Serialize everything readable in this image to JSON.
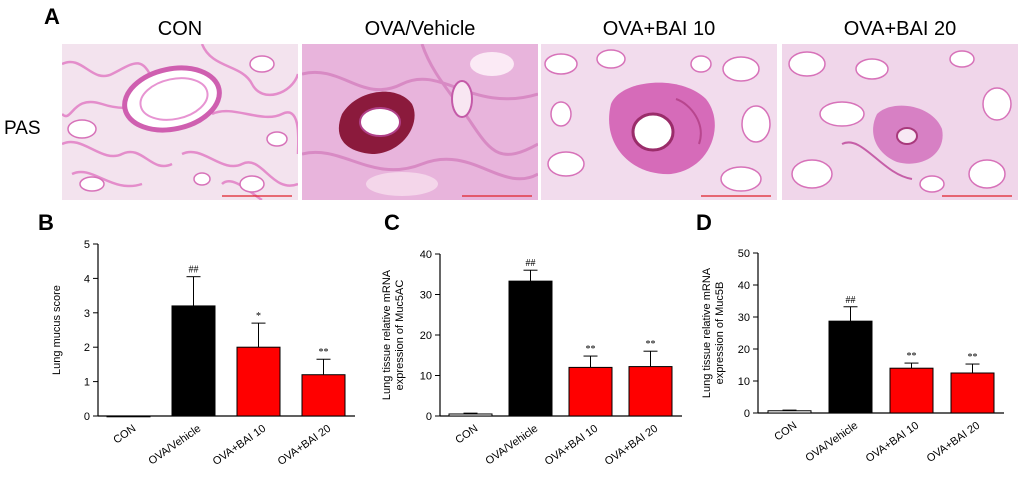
{
  "panel_a": {
    "letter": "A",
    "stain_label": "PAS",
    "groups": [
      "CON",
      "OVA/Vehicle",
      "OVA+BAI 10",
      "OVA+BAI 20"
    ]
  },
  "colors": {
    "con": "#ffffff",
    "vehicle": "#000000",
    "treated": "#ff0000",
    "tissue": "#e98fd0",
    "tissue_dark": "#c45aa8",
    "mucus": "#8b1a3c",
    "scale_bar": "#e0202a"
  },
  "chart_data": [
    {
      "type": "bar",
      "letter": "B",
      "categories": [
        "CON",
        "OVA/Vehicle",
        "OVA+BAI 10",
        "OVA+BAI 20"
      ],
      "values": [
        0,
        3.2,
        2.0,
        1.2
      ],
      "errors": [
        0,
        0.85,
        0.7,
        0.45
      ],
      "significance": [
        "",
        "##",
        "*",
        "**"
      ],
      "ylabel": "Lung mucus score",
      "ylim": [
        0,
        5
      ],
      "yticks": [
        0,
        1,
        2,
        3,
        4,
        5
      ],
      "bar_colors": [
        "#ffffff",
        "#000000",
        "#ff0000",
        "#ff0000"
      ]
    },
    {
      "type": "bar",
      "letter": "C",
      "categories": [
        "CON",
        "OVA/Vehicle",
        "OVA+BAI 10",
        "OVA+BAI 20"
      ],
      "values": [
        0.5,
        33.3,
        12.0,
        12.2
      ],
      "errors": [
        0.2,
        2.7,
        2.8,
        3.8
      ],
      "significance": [
        "",
        "##",
        "**",
        "**"
      ],
      "ylabel": [
        "Lung tissue relative mRNA",
        "expression of Muc5AC"
      ],
      "ylim": [
        0,
        40
      ],
      "yticks": [
        0,
        10,
        20,
        30,
        40
      ],
      "bar_colors": [
        "#ffffff",
        "#000000",
        "#ff0000",
        "#ff0000"
      ]
    },
    {
      "type": "bar",
      "letter": "D",
      "categories": [
        "CON",
        "OVA/Vehicle",
        "OVA+BAI 10",
        "OVA+BAI 20"
      ],
      "values": [
        0.7,
        28.7,
        14.0,
        12.5
      ],
      "errors": [
        0.2,
        4.5,
        1.6,
        2.8
      ],
      "significance": [
        "",
        "##",
        "**",
        "**"
      ],
      "ylabel": [
        "Lung tissue relative mRNA",
        "expression of Muc5B"
      ],
      "ylim": [
        0,
        50
      ],
      "yticks": [
        0,
        10,
        20,
        30,
        40,
        50
      ],
      "bar_colors": [
        "#ffffff",
        "#000000",
        "#ff0000",
        "#ff0000"
      ]
    }
  ]
}
